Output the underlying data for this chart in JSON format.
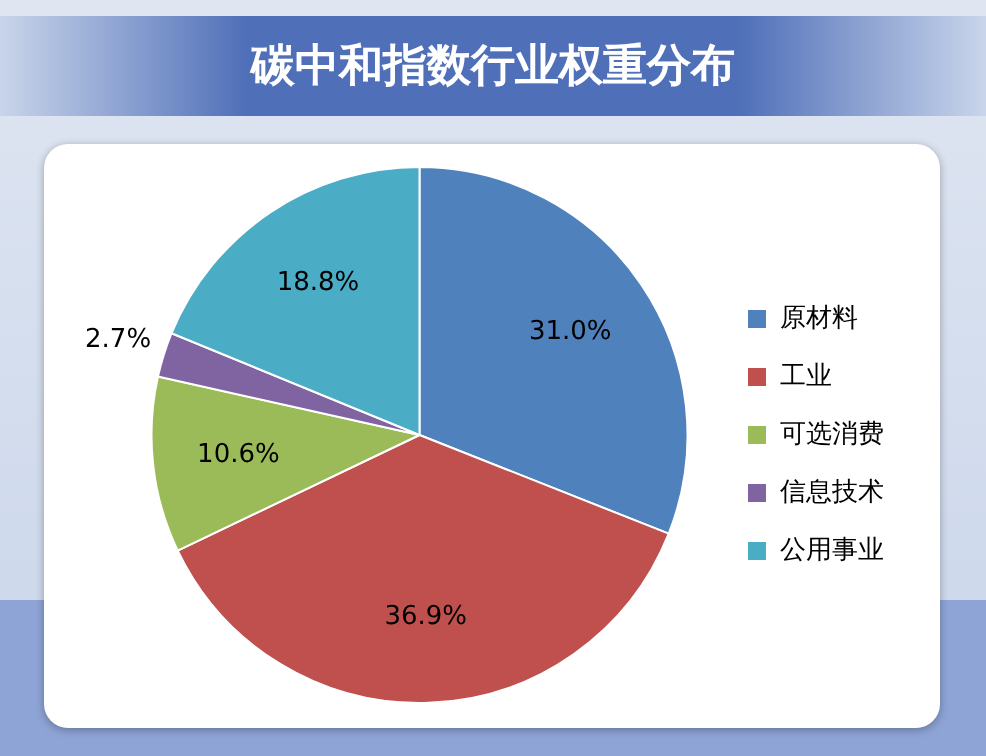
{
  "chart_data": {
    "type": "pie",
    "title": "碳中和指数行业权重分布",
    "categories": [
      "原材料",
      "工业",
      "可选消费",
      "信息技术",
      "公用事业"
    ],
    "values": [
      31.0,
      36.9,
      10.6,
      2.7,
      18.8
    ],
    "value_labels": [
      "31.0%",
      "36.9%",
      "10.6%",
      "2.7%",
      "18.8%"
    ],
    "colors": [
      "#4f81bd",
      "#c0504d",
      "#9bbb59",
      "#8064a2",
      "#4bacc6"
    ],
    "legend": "right"
  }
}
